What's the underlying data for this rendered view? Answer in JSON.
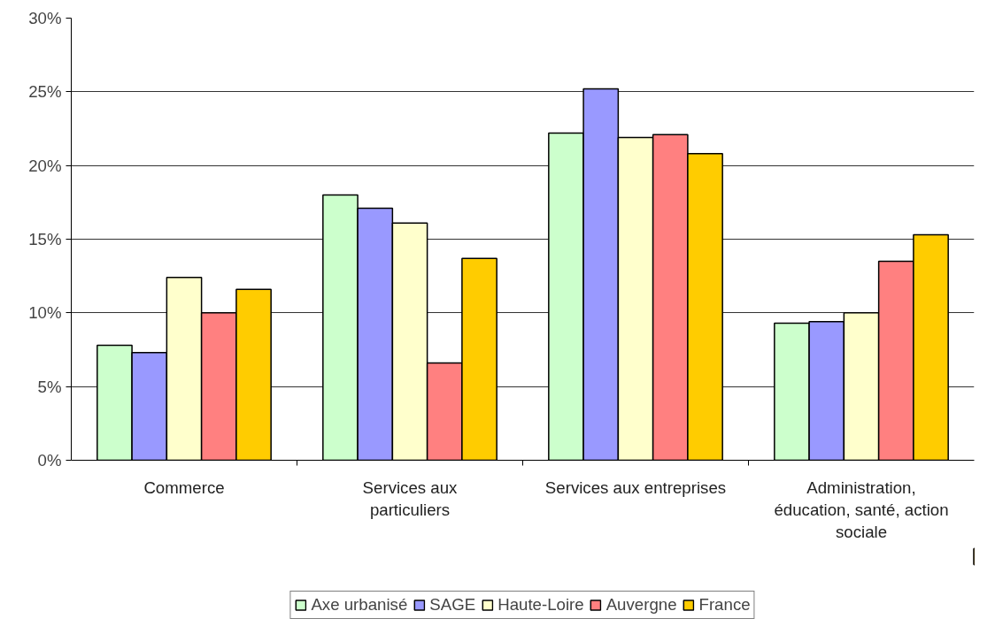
{
  "chart_data": {
    "type": "bar",
    "categories": [
      "Commerce",
      "Services aux particuliers",
      "Services aux entreprises",
      "Administration, éducation, santé, action sociale"
    ],
    "series": [
      {
        "name": "Axe urbanisé",
        "color": "#ccffcc",
        "values": [
          7.8,
          18.0,
          22.2,
          9.3
        ]
      },
      {
        "name": "SAGE",
        "color": "#9999ff",
        "values": [
          7.3,
          17.1,
          25.2,
          9.4
        ]
      },
      {
        "name": "Haute-Loire",
        "color": "#ffffcc",
        "values": [
          12.4,
          16.1,
          21.9,
          10.0
        ]
      },
      {
        "name": "Auvergne",
        "color": "#ff8080",
        "values": [
          10.0,
          6.6,
          22.1,
          13.5
        ]
      },
      {
        "name": "France",
        "color": "#ffcc00",
        "values": [
          11.6,
          13.7,
          20.8,
          15.3
        ]
      }
    ],
    "ylim": [
      0,
      30
    ],
    "yticks": [
      {
        "value": 0,
        "label": "0%"
      },
      {
        "value": 5,
        "label": "5%"
      },
      {
        "value": 10,
        "label": "10%"
      },
      {
        "value": 15,
        "label": "15%"
      },
      {
        "value": 20,
        "label": "20%"
      },
      {
        "value": 25,
        "label": "25%"
      },
      {
        "value": 30,
        "label": "30%"
      }
    ],
    "grid": "y",
    "legend": "bottom"
  }
}
